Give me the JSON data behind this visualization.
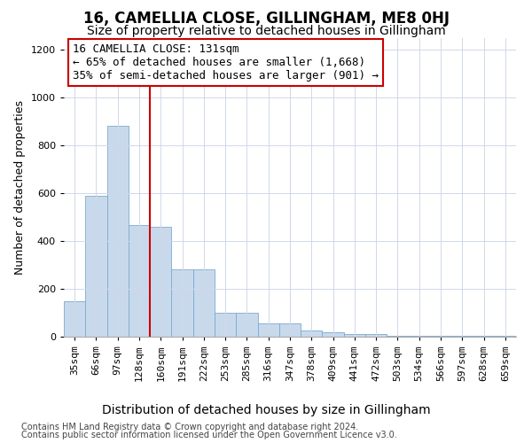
{
  "title": "16, CAMELLIA CLOSE, GILLINGHAM, ME8 0HJ",
  "subtitle": "Size of property relative to detached houses in Gillingham",
  "xlabel": "Distribution of detached houses by size in Gillingham",
  "ylabel": "Number of detached properties",
  "bar_labels": [
    "35sqm",
    "66sqm",
    "97sqm",
    "128sqm",
    "160sqm",
    "191sqm",
    "222sqm",
    "253sqm",
    "285sqm",
    "316sqm",
    "347sqm",
    "378sqm",
    "409sqm",
    "441sqm",
    "472sqm",
    "503sqm",
    "534sqm",
    "566sqm",
    "597sqm",
    "628sqm",
    "659sqm"
  ],
  "bar_values": [
    150,
    590,
    880,
    465,
    460,
    280,
    280,
    100,
    100,
    55,
    55,
    25,
    20,
    10,
    10,
    5,
    5,
    2,
    2,
    2,
    2
  ],
  "bar_color": "#c9d9ec",
  "bar_edge_color": "#7aabcf",
  "vline_color": "#cc0000",
  "annotation_line1": "16 CAMELLIA CLOSE: 131sqm",
  "annotation_line2": "← 65% of detached houses are smaller (1,668)",
  "annotation_line3": "35% of semi-detached houses are larger (901) →",
  "annotation_box_color": "#ffffff",
  "annotation_box_edge": "#cc0000",
  "ylim": [
    0,
    1250
  ],
  "yticks": [
    0,
    200,
    400,
    600,
    800,
    1000,
    1200
  ],
  "footer_line1": "Contains HM Land Registry data © Crown copyright and database right 2024.",
  "footer_line2": "Contains public sector information licensed under the Open Government Licence v3.0.",
  "bg_color": "#ffffff",
  "grid_color": "#d0d8e8",
  "title_fontsize": 12,
  "subtitle_fontsize": 10,
  "xlabel_fontsize": 10,
  "ylabel_fontsize": 9,
  "tick_fontsize": 8,
  "annotation_fontsize": 9,
  "footer_fontsize": 7
}
